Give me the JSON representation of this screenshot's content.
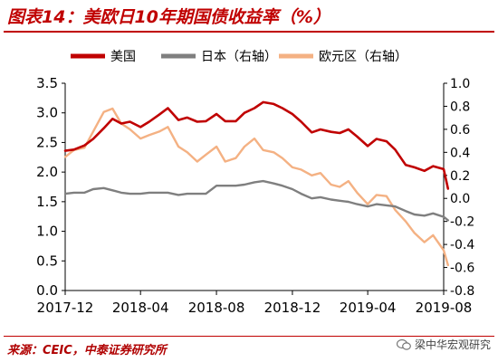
{
  "title": "图表14：美欧日10年期国债收益率（%）",
  "source": "来源：CEIC，中泰证券研究所",
  "watermark": "梁中华宏观研究",
  "colors": {
    "us": "#c00000",
    "japan": "#7f7f7f",
    "euro": "#f4b183",
    "title": "#c00000"
  },
  "chart_data": {
    "type": "line",
    "x_axis": {
      "tick_labels": [
        "2017-12",
        "2018-04",
        "2018-08",
        "2018-12",
        "2019-04",
        "2019-08"
      ],
      "range": [
        "2017-12",
        "2019-08"
      ]
    },
    "y_left": {
      "ylim": [
        0.0,
        3.5
      ],
      "ticks": [
        "0.0",
        "0.5",
        "1.0",
        "1.5",
        "2.0",
        "2.5",
        "3.0",
        "3.5"
      ]
    },
    "y_right": {
      "ylim": [
        -0.8,
        1.0
      ],
      "ticks": [
        "-0.8",
        "-0.6",
        "-0.4",
        "-0.2",
        "0.0",
        "0.2",
        "0.4",
        "0.6",
        "0.8",
        "1.0"
      ]
    },
    "grid": false,
    "legend_position": "top",
    "series": [
      {
        "name": "美国",
        "axis": "left",
        "color": "#c00000",
        "points": [
          [
            "2017-12-01",
            2.36
          ],
          [
            "2017-12-15",
            2.38
          ],
          [
            "2018-01-01",
            2.45
          ],
          [
            "2018-01-15",
            2.56
          ],
          [
            "2018-02-01",
            2.74
          ],
          [
            "2018-02-15",
            2.9
          ],
          [
            "2018-03-01",
            2.82
          ],
          [
            "2018-03-15",
            2.85
          ],
          [
            "2018-04-01",
            2.76
          ],
          [
            "2018-04-15",
            2.85
          ],
          [
            "2018-05-01",
            2.97
          ],
          [
            "2018-05-15",
            3.08
          ],
          [
            "2018-06-01",
            2.88
          ],
          [
            "2018-06-15",
            2.92
          ],
          [
            "2018-07-01",
            2.85
          ],
          [
            "2018-07-15",
            2.86
          ],
          [
            "2018-08-01",
            2.98
          ],
          [
            "2018-08-15",
            2.86
          ],
          [
            "2018-09-01",
            2.86
          ],
          [
            "2018-09-15",
            3.0
          ],
          [
            "2018-10-01",
            3.08
          ],
          [
            "2018-10-15",
            3.18
          ],
          [
            "2018-11-01",
            3.15
          ],
          [
            "2018-11-15",
            3.08
          ],
          [
            "2018-12-01",
            2.98
          ],
          [
            "2018-12-15",
            2.85
          ],
          [
            "2019-01-01",
            2.67
          ],
          [
            "2019-01-15",
            2.72
          ],
          [
            "2019-02-01",
            2.68
          ],
          [
            "2019-02-15",
            2.66
          ],
          [
            "2019-03-01",
            2.72
          ],
          [
            "2019-03-15",
            2.6
          ],
          [
            "2019-04-01",
            2.44
          ],
          [
            "2019-04-15",
            2.56
          ],
          [
            "2019-05-01",
            2.52
          ],
          [
            "2019-05-15",
            2.38
          ],
          [
            "2019-06-01",
            2.12
          ],
          [
            "2019-06-15",
            2.08
          ],
          [
            "2019-07-01",
            2.02
          ],
          [
            "2019-07-15",
            2.1
          ],
          [
            "2019-08-01",
            2.05
          ],
          [
            "2019-08-08",
            1.72
          ]
        ]
      },
      {
        "name": "日本（右轴）",
        "axis": "right",
        "color": "#7f7f7f",
        "points": [
          [
            "2017-12-01",
            0.04
          ],
          [
            "2017-12-15",
            0.05
          ],
          [
            "2018-01-01",
            0.05
          ],
          [
            "2018-01-15",
            0.08
          ],
          [
            "2018-02-01",
            0.09
          ],
          [
            "2018-02-15",
            0.07
          ],
          [
            "2018-03-01",
            0.05
          ],
          [
            "2018-03-15",
            0.04
          ],
          [
            "2018-04-01",
            0.04
          ],
          [
            "2018-04-15",
            0.05
          ],
          [
            "2018-05-01",
            0.05
          ],
          [
            "2018-05-15",
            0.05
          ],
          [
            "2018-06-01",
            0.03
          ],
          [
            "2018-06-15",
            0.04
          ],
          [
            "2018-07-01",
            0.04
          ],
          [
            "2018-07-15",
            0.04
          ],
          [
            "2018-08-01",
            0.11
          ],
          [
            "2018-08-15",
            0.11
          ],
          [
            "2018-09-01",
            0.11
          ],
          [
            "2018-09-15",
            0.12
          ],
          [
            "2018-10-01",
            0.14
          ],
          [
            "2018-10-15",
            0.15
          ],
          [
            "2018-11-01",
            0.13
          ],
          [
            "2018-11-15",
            0.11
          ],
          [
            "2018-12-01",
            0.08
          ],
          [
            "2018-12-15",
            0.04
          ],
          [
            "2019-01-01",
            0.0
          ],
          [
            "2019-01-15",
            0.01
          ],
          [
            "2019-02-01",
            -0.01
          ],
          [
            "2019-02-15",
            -0.02
          ],
          [
            "2019-03-01",
            -0.03
          ],
          [
            "2019-03-15",
            -0.05
          ],
          [
            "2019-04-01",
            -0.07
          ],
          [
            "2019-04-15",
            -0.05
          ],
          [
            "2019-05-01",
            -0.06
          ],
          [
            "2019-05-15",
            -0.07
          ],
          [
            "2019-06-01",
            -0.11
          ],
          [
            "2019-06-15",
            -0.14
          ],
          [
            "2019-07-01",
            -0.15
          ],
          [
            "2019-07-15",
            -0.13
          ],
          [
            "2019-08-01",
            -0.16
          ],
          [
            "2019-08-08",
            -0.19
          ]
        ]
      },
      {
        "name": "欧元区（右轴）",
        "axis": "right",
        "color": "#f4b183",
        "points": [
          [
            "2017-12-01",
            0.36
          ],
          [
            "2017-12-15",
            0.42
          ],
          [
            "2018-01-01",
            0.44
          ],
          [
            "2018-01-15",
            0.58
          ],
          [
            "2018-02-01",
            0.75
          ],
          [
            "2018-02-15",
            0.78
          ],
          [
            "2018-03-01",
            0.65
          ],
          [
            "2018-03-15",
            0.6
          ],
          [
            "2018-04-01",
            0.52
          ],
          [
            "2018-04-15",
            0.55
          ],
          [
            "2018-05-01",
            0.58
          ],
          [
            "2018-05-15",
            0.62
          ],
          [
            "2018-06-01",
            0.45
          ],
          [
            "2018-06-15",
            0.4
          ],
          [
            "2018-07-01",
            0.32
          ],
          [
            "2018-07-15",
            0.38
          ],
          [
            "2018-08-01",
            0.45
          ],
          [
            "2018-08-15",
            0.32
          ],
          [
            "2018-09-01",
            0.35
          ],
          [
            "2018-09-15",
            0.45
          ],
          [
            "2018-10-01",
            0.52
          ],
          [
            "2018-10-15",
            0.42
          ],
          [
            "2018-11-01",
            0.4
          ],
          [
            "2018-11-15",
            0.35
          ],
          [
            "2018-12-01",
            0.27
          ],
          [
            "2018-12-15",
            0.25
          ],
          [
            "2019-01-01",
            0.2
          ],
          [
            "2019-01-15",
            0.22
          ],
          [
            "2019-02-01",
            0.12
          ],
          [
            "2019-02-15",
            0.1
          ],
          [
            "2019-03-01",
            0.15
          ],
          [
            "2019-03-15",
            0.05
          ],
          [
            "2019-04-01",
            -0.05
          ],
          [
            "2019-04-15",
            0.03
          ],
          [
            "2019-05-01",
            0.02
          ],
          [
            "2019-05-15",
            -0.1
          ],
          [
            "2019-06-01",
            -0.2
          ],
          [
            "2019-06-15",
            -0.3
          ],
          [
            "2019-07-01",
            -0.38
          ],
          [
            "2019-07-15",
            -0.32
          ],
          [
            "2019-08-01",
            -0.45
          ],
          [
            "2019-08-08",
            -0.58
          ]
        ]
      }
    ]
  }
}
